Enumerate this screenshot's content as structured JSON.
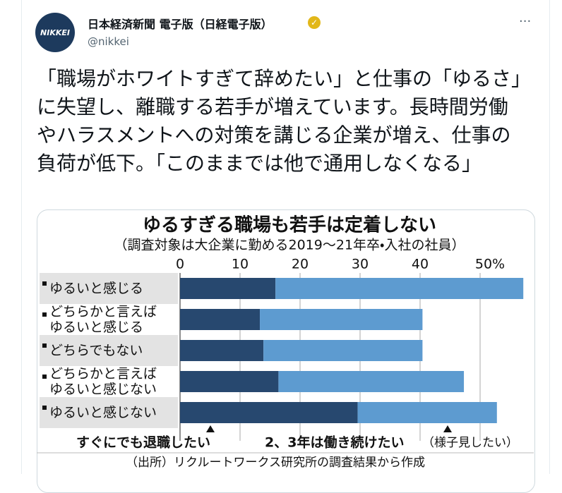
{
  "tweet": {
    "author": "日本経済新聞 電子版（日経電子版）",
    "handle": "@nikkei",
    "avatar": "NIKKEI",
    "text": "「職場がホワイトすぎて辞めたい」と仕事の「ゆるさ」に失望し、離職する若手が増えています。長時間労働やハラスメントへの対策を講じる企業が増え、仕事の負荷が低下。「このままでは他で通用しなくなる」"
  },
  "chart_data": {
    "type": "bar",
    "orientation": "horizontal",
    "stacked": true,
    "title": "ゆるすぎる職場も若手は定着しない",
    "subtitle": "（調査対象は大企業に勤める2019～21年卒・入社の社員）",
    "categories": [
      "ゆるいと感じる",
      "どちらかと言えば\nゆるいと感じる",
      "どちらでもない",
      "どちらかと言えば\nゆるいと感じない",
      "ゆるいと感じない"
    ],
    "series": [
      {
        "name": "すぐにでも退職したい",
        "color": "#27486f",
        "values": [
          15.9,
          13.3,
          13.9,
          16.4,
          29.6
        ]
      },
      {
        "name": "2、3年は働き続けたい",
        "color": "#5d9bd0",
        "values": [
          41.3,
          27.1,
          26.5,
          30.9,
          23.2
        ]
      }
    ],
    "xlim": [
      0,
      57.5
    ],
    "xticks": [
      0,
      10,
      20,
      30,
      40,
      {
        "value": 50,
        "label": "50%"
      }
    ],
    "grid": true,
    "annotation": "（様子見したい）",
    "source": "（出所）リクルートワークス研究所の調査結果から作成"
  }
}
